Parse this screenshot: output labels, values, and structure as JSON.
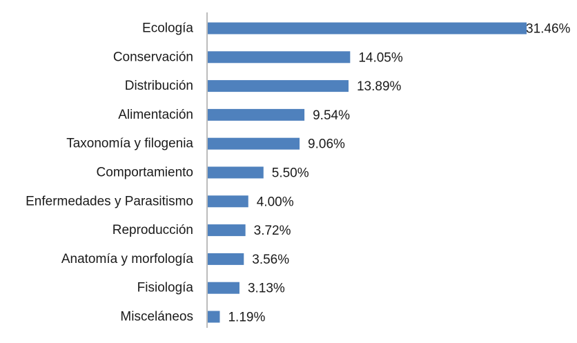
{
  "chart_data": {
    "type": "bar",
    "orientation": "horizontal",
    "title": "",
    "xlabel": "",
    "ylabel": "",
    "categories": [
      "Ecología",
      "Conservación",
      "Distribución",
      "Alimentación",
      "Taxonomía y filogenia",
      "Comportamiento",
      "Enfermedades y Parasitismo",
      "Reproducción",
      "Anatomía y morfología",
      "Fisiología",
      "Misceláneos"
    ],
    "values": [
      31.46,
      14.05,
      13.89,
      9.54,
      9.06,
      5.5,
      4.0,
      3.72,
      3.56,
      3.13,
      1.19
    ],
    "value_labels": [
      "31.46%",
      "14.05%",
      "13.89%",
      "9.54%",
      "9.06%",
      "5.50%",
      "4.00%",
      "3.72%",
      "3.56%",
      "3.13%",
      "1.19%"
    ],
    "xlim": [
      0,
      31.46
    ],
    "grid": false,
    "legend": "none",
    "bar_color": "#4f81bd",
    "axis_color": "#a6a6a6"
  }
}
